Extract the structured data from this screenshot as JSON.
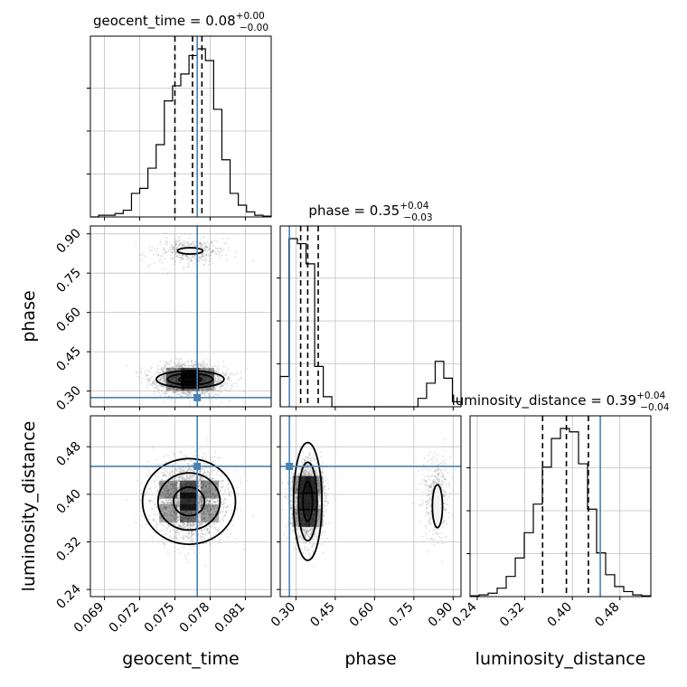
{
  "chart_data": {
    "type": "corner",
    "parameters": [
      {
        "name": "geocent_time",
        "label": "geocent_time",
        "range": [
          0.0678,
          0.0832
        ],
        "ticks": [
          0.069,
          0.072,
          0.075,
          0.078,
          0.081
        ],
        "tick_labels": [
          "0.069",
          "0.072",
          "0.075",
          "0.078",
          "0.081"
        ],
        "truth": 0.0769,
        "quantiles": [
          0.075,
          0.0765,
          0.0773
        ]
      },
      {
        "name": "phase",
        "label": "phase",
        "range": [
          0.24,
          0.93
        ],
        "ticks": [
          0.3,
          0.45,
          0.6,
          0.75,
          0.9
        ],
        "tick_labels": [
          "0.30",
          "0.45",
          "0.60",
          "0.75",
          "0.90"
        ],
        "truth": 0.275,
        "quantiles": [
          0.318,
          0.345,
          0.385
        ]
      },
      {
        "name": "luminosity_distance",
        "label": "luminosity_distance",
        "range": [
          0.228,
          0.532
        ],
        "ticks": [
          0.24,
          0.32,
          0.4,
          0.48
        ],
        "tick_labels": [
          "0.24",
          "0.32",
          "0.40",
          "0.48"
        ],
        "truth": 0.447,
        "quantiles": [
          0.35,
          0.39,
          0.427
        ]
      }
    ],
    "diagonal_titles": [
      {
        "param": "geocent_time",
        "prefix": "geocent_time = ",
        "value": "0.08",
        "plus": "+0.00",
        "minus": "−0.00"
      },
      {
        "param": "phase",
        "prefix": "phase = ",
        "value": "0.35",
        "plus": "+0.04",
        "minus": "−0.03"
      },
      {
        "param": "luminosity_distance",
        "prefix": "luminosity_distance = ",
        "value": "0.39",
        "plus": "+0.04",
        "minus": "−0.04"
      }
    ],
    "histograms": {
      "geocent_time": {
        "bins": [
          0.0678,
          0.0832
        ],
        "counts": [
          0,
          0.01,
          0.01,
          0.02,
          0.04,
          0.14,
          0.17,
          0.29,
          0.43,
          0.69,
          0.78,
          0.85,
          0.96,
          1.0,
          0.93,
          0.64,
          0.34,
          0.14,
          0.07,
          0.03,
          0.01,
          0.005
        ]
      },
      "phase": {
        "bins": [
          0.24,
          0.93
        ],
        "counts": [
          0.18,
          1.0,
          0.97,
          0.85,
          0.24,
          0.06,
          0,
          0,
          0,
          0,
          0,
          0,
          0,
          0,
          0,
          0,
          0.05,
          0.14,
          0.27,
          0.17,
          0.03
        ]
      },
      "luminosity_distance": {
        "bins": [
          0.228,
          0.532
        ],
        "counts": [
          0.005,
          0.01,
          0.02,
          0.05,
          0.12,
          0.23,
          0.38,
          0.55,
          0.77,
          0.94,
          1.0,
          0.98,
          0.79,
          0.52,
          0.26,
          0.13,
          0.06,
          0.03,
          0.01,
          0.005
        ]
      }
    },
    "grid": true,
    "colors": {
      "truth": "#4682b4",
      "contour": "#000000",
      "samples": "#808080",
      "grid": "#c0c0c0"
    }
  }
}
